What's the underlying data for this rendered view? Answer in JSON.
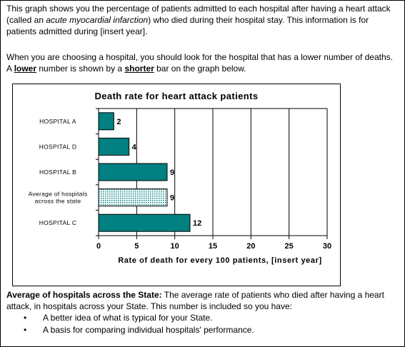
{
  "intro": {
    "part1": "This graph shows you the percentage of patients admitted to each hospital after having a heart attack (called an ",
    "italic_term": "acute myocardial infarction",
    "part2": ") who died during their hospital stay. This information is for patients admitted during [insert year]."
  },
  "choose": {
    "part1": "When you are choosing a hospital, you should look for the hospital that has a lower number of deaths. A ",
    "lower_word": "lower",
    "part2": " number is shown by a ",
    "shorter_word": "shorter",
    "part3": " bar on the graph below."
  },
  "chart_data": {
    "type": "bar",
    "orientation": "horizontal",
    "title": "Death rate for heart attack patients",
    "xlabel": "Rate of death for every 100 patients, [insert year]",
    "ylabel": "",
    "categories": [
      "HOSPITAL A",
      "HOSPITAL D",
      "HOSPITAL B",
      "Average of hospitals across the state",
      "HOSPITAL C"
    ],
    "category_lines": [
      [
        "HOSPITAL A"
      ],
      [
        "HOSPITAL D"
      ],
      [
        "HOSPITAL B"
      ],
      [
        "Average of hospitals",
        "across the state"
      ],
      [
        "HOSPITAL C"
      ]
    ],
    "values": [
      2,
      4,
      9,
      9,
      12
    ],
    "patterned": [
      false,
      false,
      false,
      true,
      false
    ],
    "xlim": [
      0,
      30
    ],
    "xticks": [
      0,
      5,
      10,
      15,
      20,
      25,
      30
    ],
    "grid": true,
    "bar_color": "#008080",
    "pattern_color": "#008080"
  },
  "footer": {
    "heading": "Average of hospitals across the State:",
    "text": " The average rate of patients who died after having a heart attack, in hospitals across your State. This number is included so you have:",
    "bullet_symbol": "•",
    "bullets": [
      "A better idea of what is typical for your State.",
      "A basis for comparing individual hospitals' performance."
    ]
  }
}
